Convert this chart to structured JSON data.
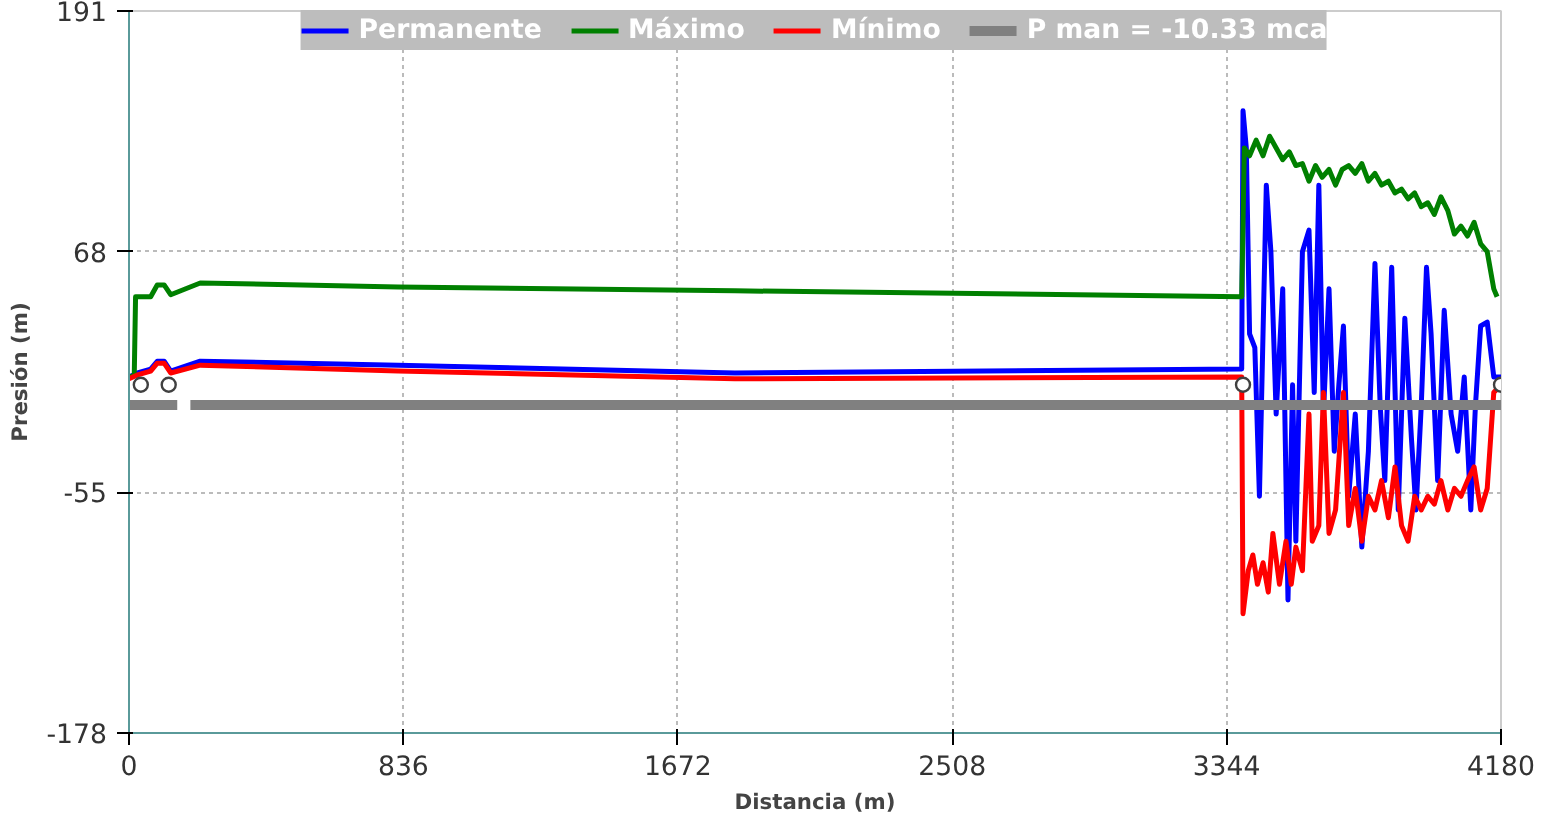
{
  "chart_data": {
    "type": "line",
    "xlabel": "Distancia (m)",
    "ylabel": "Presión (m)",
    "xlim": [
      0,
      4180
    ],
    "xticks": [
      0,
      836,
      1672,
      2508,
      3344,
      4180
    ],
    "ylim": [
      -178,
      191
    ],
    "yticks": [
      -178,
      -55,
      68,
      191
    ],
    "grid": true,
    "legend": "top",
    "line_style": "solid",
    "marker": "none",
    "series": [
      {
        "name": "Permanente",
        "color": "#0000ff",
        "x": [
          0,
          26,
          66,
          86,
          107,
          127,
          217,
          820,
          1846,
          3390,
          3394,
          3404,
          3414,
          3430,
          3444,
          3465,
          3479,
          3495,
          3515,
          3531,
          3545,
          3555,
          3575,
          3595,
          3611,
          3625,
          3639,
          3656,
          3672,
          3686,
          3700,
          3716,
          3736,
          3756,
          3776,
          3796,
          3812,
          3826,
          3847,
          3867,
          3887,
          3907,
          3921,
          3937,
          3953,
          3967,
          3987,
          4007,
          4028,
          4048,
          4068,
          4088,
          4102,
          4118,
          4138,
          4158,
          4180
        ],
        "values": [
          4,
          6,
          8,
          12,
          12,
          7,
          12,
          10,
          6,
          8,
          140,
          121,
          26,
          19,
          -57,
          102,
          68,
          -15,
          49,
          -110,
          0,
          -80,
          68,
          79,
          -4,
          102,
          -15,
          49,
          -34,
          0,
          30,
          -57,
          -15,
          -83,
          -34,
          62,
          -11,
          -49,
          60,
          -64,
          34,
          -27,
          -64,
          -11,
          60,
          26,
          -49,
          38,
          -15,
          -34,
          4,
          -64,
          -11,
          30,
          32,
          4,
          4
        ]
      },
      {
        "name": "Máximo",
        "color": "#008000",
        "x": [
          0,
          16,
          20,
          26,
          66,
          86,
          107,
          127,
          217,
          820,
          1846,
          3390,
          3398,
          3414,
          3434,
          3455,
          3475,
          3495,
          3515,
          3535,
          3555,
          3575,
          3595,
          3615,
          3635,
          3656,
          3676,
          3696,
          3716,
          3736,
          3756,
          3776,
          3796,
          3816,
          3837,
          3857,
          3877,
          3897,
          3917,
          3937,
          3957,
          3977,
          3997,
          4018,
          4038,
          4058,
          4078,
          4098,
          4118,
          4138,
          4158,
          4168
        ],
        "values": [
          4,
          5,
          45,
          45,
          45,
          51,
          51,
          46,
          52,
          50,
          48,
          45,
          121,
          117,
          125,
          117,
          127,
          121,
          115,
          119,
          112,
          113,
          104,
          112,
          106,
          110,
          102,
          110,
          112,
          108,
          113,
          104,
          108,
          102,
          104,
          98,
          100,
          95,
          98,
          91,
          93,
          87,
          96,
          89,
          77,
          81,
          76,
          83,
          72,
          68,
          49,
          45
        ]
      },
      {
        "name": "Mínimo",
        "color": "#ff0000",
        "x": [
          0,
          26,
          66,
          86,
          107,
          127,
          217,
          820,
          1846,
          3390,
          3394,
          3410,
          3424,
          3438,
          3455,
          3471,
          3485,
          3505,
          3525,
          3541,
          3555,
          3575,
          3595,
          3605,
          3625,
          3639,
          3656,
          3676,
          3700,
          3716,
          3736,
          3756,
          3776,
          3796,
          3816,
          3837,
          3857,
          3877,
          3897,
          3917,
          3937,
          3957,
          3977,
          3997,
          4018,
          4038,
          4058,
          4078,
          4098,
          4118,
          4138,
          4158,
          4180
        ],
        "values": [
          3,
          5,
          7,
          11,
          11,
          6,
          10,
          7,
          3,
          4,
          -117,
          -95,
          -87,
          -102,
          -91,
          -106,
          -76,
          -102,
          -80,
          -102,
          -83,
          -95,
          -15,
          -80,
          -72,
          -4,
          -76,
          -64,
          -4,
          -72,
          -53,
          -80,
          -57,
          -64,
          -49,
          -68,
          -42,
          -72,
          -80,
          -57,
          -64,
          -57,
          -61,
          -49,
          -64,
          -53,
          -57,
          -49,
          -42,
          -64,
          -53,
          -4,
          0
        ]
      },
      {
        "name": "P man = -10.33 mca",
        "color": "#808080",
        "x": [
          0,
          147,
          167,
          187,
          4180
        ],
        "values": [
          -10.33,
          -10.33,
          null,
          -10.33,
          -10.33
        ]
      },
      {
        "type": "scatter",
        "marker": "circle",
        "color": "#404040",
        "x": [
          36,
          121,
          3394,
          4180
        ],
        "values": [
          0,
          0,
          0,
          0
        ]
      }
    ]
  }
}
